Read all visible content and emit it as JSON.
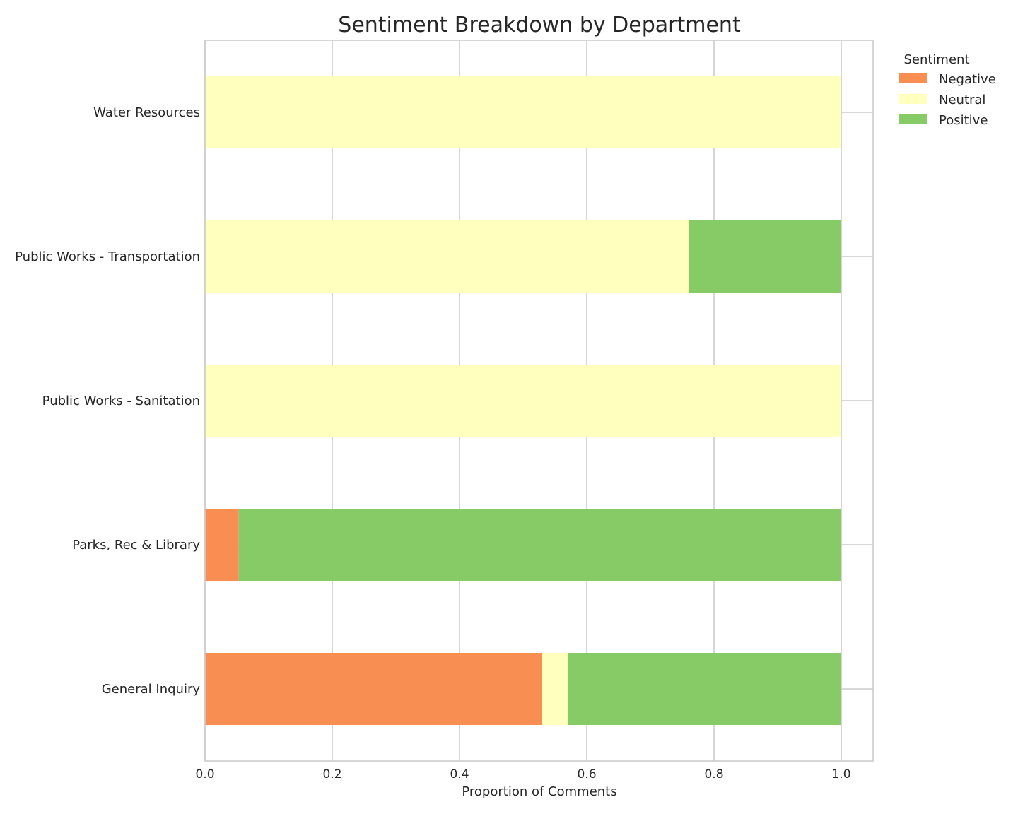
{
  "chart_data": {
    "type": "bar",
    "orientation": "horizontal",
    "stacked": true,
    "title": "Sentiment Breakdown by Department",
    "xlabel": "Proportion of Comments",
    "ylabel": "",
    "xlim": [
      0,
      1.05
    ],
    "xticks": [
      "0.0",
      "0.2",
      "0.4",
      "0.6",
      "0.8",
      "1.0"
    ],
    "xtick_values": [
      0.0,
      0.2,
      0.4,
      0.6,
      0.8,
      1.0
    ],
    "grid": true,
    "legend": {
      "title": "Sentiment",
      "placement": "outside-top-right"
    },
    "categories": [
      "General Inquiry",
      "Parks, Rec & Library",
      "Public Works - Sanitation",
      "Public Works - Transportation",
      "Water Resources"
    ],
    "series": [
      {
        "name": "Negative",
        "color": "#f98e52",
        "values": [
          0.53,
          0.053,
          0.0,
          0.0,
          0.0
        ]
      },
      {
        "name": "Neutral",
        "color": "#ffffbe",
        "values": [
          0.04,
          0.0,
          1.0,
          0.76,
          1.0
        ]
      },
      {
        "name": "Positive",
        "color": "#86cb66",
        "values": [
          0.43,
          0.947,
          0.0,
          0.24,
          0.0
        ]
      }
    ]
  }
}
